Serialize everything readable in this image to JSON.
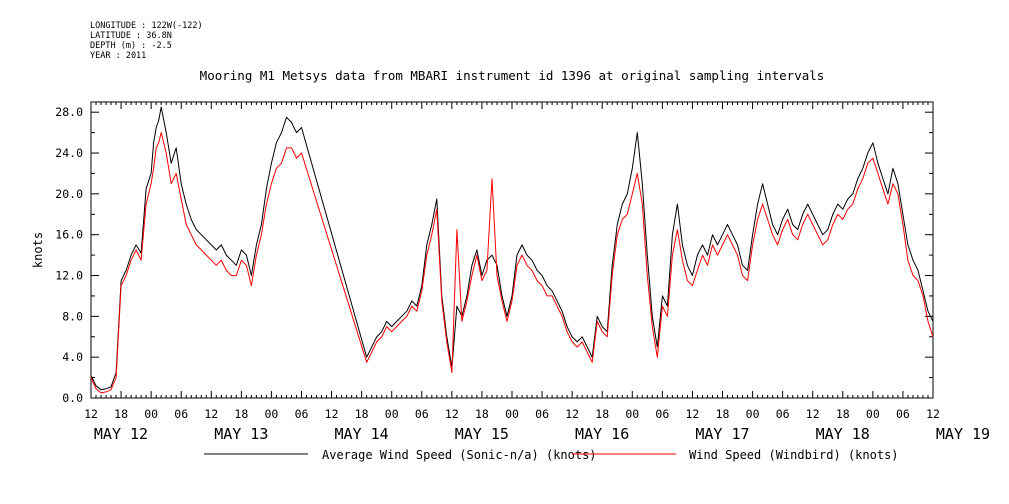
{
  "metadata": [
    "LONGITUDE : 122W(-122)",
    "LATITUDE : 36.8N",
    "DEPTH (m) : -2.5",
    "YEAR : 2011"
  ],
  "colors": {
    "series_sonic": "#000000",
    "series_windbird": "#ff0000"
  },
  "chart_data": {
    "type": "line",
    "title": "Mooring M1 Metsys data from MBARI instrument id 1396 at original sampling intervals",
    "xlabel": "",
    "ylabel": "knots",
    "ylim": [
      0,
      29
    ],
    "xlim_hours": [
      -12,
      156
    ],
    "yticks": [
      "0.0",
      "4.0",
      "8.0",
      "12.0",
      "16.0",
      "20.0",
      "24.0",
      "28.0"
    ],
    "hour_tick_labels": [
      "12",
      "18",
      "00",
      "06",
      "12",
      "18",
      "00",
      "06",
      "12",
      "18",
      "00",
      "06",
      "12",
      "18",
      "00",
      "06",
      "12",
      "18",
      "00",
      "06",
      "12",
      "18",
      "00",
      "06",
      "12",
      "18",
      "00",
      "06",
      "12"
    ],
    "day_labels": [
      "MAY 12",
      "MAY 13",
      "MAY 14",
      "MAY 15",
      "MAY 16",
      "MAY 17",
      "MAY 18",
      "MAY 19"
    ],
    "grid": false,
    "legend_position": "bottom",
    "x_unit_note": "hours relative to 2011-05-12 00:00",
    "series": [
      {
        "name": "Average Wind Speed (Sonic-n/a) (knots)",
        "color": "#000000",
        "points": [
          [
            -12,
            2.2
          ],
          [
            -11,
            1.2
          ],
          [
            -10,
            0.8
          ],
          [
            -9,
            0.9
          ],
          [
            -8,
            1.1
          ],
          [
            -7,
            2.5
          ],
          [
            -6,
            11.5
          ],
          [
            -5,
            12.5
          ],
          [
            -4,
            14.0
          ],
          [
            -3,
            15.0
          ],
          [
            -2,
            14.2
          ],
          [
            -1,
            20.5
          ],
          [
            0,
            22.0
          ],
          [
            0.5,
            25.0
          ],
          [
            1,
            26.5
          ],
          [
            1.5,
            27.2
          ],
          [
            2,
            28.5
          ],
          [
            3,
            26.0
          ],
          [
            4,
            23.0
          ],
          [
            5,
            24.5
          ],
          [
            6,
            21.0
          ],
          [
            7,
            19.0
          ],
          [
            8,
            17.5
          ],
          [
            9,
            16.5
          ],
          [
            10,
            16.0
          ],
          [
            11,
            15.5
          ],
          [
            12,
            15.0
          ],
          [
            13,
            14.5
          ],
          [
            14,
            15.0
          ],
          [
            15,
            14.0
          ],
          [
            16,
            13.5
          ],
          [
            17,
            13.0
          ],
          [
            18,
            14.5
          ],
          [
            19,
            14.0
          ],
          [
            20,
            12.0
          ],
          [
            21,
            15.0
          ],
          [
            22,
            17.0
          ],
          [
            23,
            20.5
          ],
          [
            24,
            23.0
          ],
          [
            25,
            25.0
          ],
          [
            26,
            26.0
          ],
          [
            27,
            27.5
          ],
          [
            28,
            27.0
          ],
          [
            29,
            26.0
          ],
          [
            30,
            26.5
          ],
          [
            43,
            4.0
          ],
          [
            44,
            5.0
          ],
          [
            45,
            6.0
          ],
          [
            46,
            6.5
          ],
          [
            47,
            7.5
          ],
          [
            48,
            7.0
          ],
          [
            49,
            7.5
          ],
          [
            50,
            8.0
          ],
          [
            51,
            8.5
          ],
          [
            52,
            9.5
          ],
          [
            53,
            9.0
          ],
          [
            54,
            11.0
          ],
          [
            55,
            15.0
          ],
          [
            56,
            17.0
          ],
          [
            57,
            19.5
          ],
          [
            58,
            10.0
          ],
          [
            59,
            6.0
          ],
          [
            60,
            3.0
          ],
          [
            61,
            9.0
          ],
          [
            62,
            8.0
          ],
          [
            63,
            10.0
          ],
          [
            64,
            13.0
          ],
          [
            65,
            14.5
          ],
          [
            66,
            12.0
          ],
          [
            67,
            13.5
          ],
          [
            68,
            14.0
          ],
          [
            69,
            13.0
          ],
          [
            70,
            10.0
          ],
          [
            71,
            8.0
          ],
          [
            72,
            10.0
          ],
          [
            73,
            14.0
          ],
          [
            74,
            15.0
          ],
          [
            75,
            14.0
          ],
          [
            76,
            13.5
          ],
          [
            77,
            12.5
          ],
          [
            78,
            12.0
          ],
          [
            79,
            11.0
          ],
          [
            80,
            10.5
          ],
          [
            81,
            9.5
          ],
          [
            82,
            8.5
          ],
          [
            83,
            7.0
          ],
          [
            84,
            6.0
          ],
          [
            85,
            5.5
          ],
          [
            86,
            6.0
          ],
          [
            87,
            5.0
          ],
          [
            88,
            4.0
          ],
          [
            89,
            8.0
          ],
          [
            90,
            7.0
          ],
          [
            91,
            6.5
          ],
          [
            92,
            13.0
          ],
          [
            93,
            17.0
          ],
          [
            94,
            19.0
          ],
          [
            95,
            20.0
          ],
          [
            96,
            22.5
          ],
          [
            97,
            26.0
          ],
          [
            98,
            21.0
          ],
          [
            99,
            14.0
          ],
          [
            100,
            8.0
          ],
          [
            101,
            5.0
          ],
          [
            102,
            10.0
          ],
          [
            103,
            9.0
          ],
          [
            104,
            16.0
          ],
          [
            105,
            19.0
          ],
          [
            106,
            15.0
          ],
          [
            107,
            13.0
          ],
          [
            108,
            12.0
          ],
          [
            109,
            14.0
          ],
          [
            110,
            15.0
          ],
          [
            111,
            14.0
          ],
          [
            112,
            16.0
          ],
          [
            113,
            15.0
          ],
          [
            114,
            16.0
          ],
          [
            115,
            17.0
          ],
          [
            116,
            16.0
          ],
          [
            117,
            15.0
          ],
          [
            118,
            13.0
          ],
          [
            119,
            12.5
          ],
          [
            120,
            16.0
          ],
          [
            121,
            19.0
          ],
          [
            122,
            21.0
          ],
          [
            123,
            19.0
          ],
          [
            124,
            17.0
          ],
          [
            125,
            16.0
          ],
          [
            126,
            17.5
          ],
          [
            127,
            18.5
          ],
          [
            128,
            17.0
          ],
          [
            129,
            16.5
          ],
          [
            130,
            18.0
          ],
          [
            131,
            19.0
          ],
          [
            132,
            18.0
          ],
          [
            133,
            17.0
          ],
          [
            134,
            16.0
          ],
          [
            135,
            16.5
          ],
          [
            136,
            18.0
          ],
          [
            137,
            19.0
          ],
          [
            138,
            18.5
          ],
          [
            139,
            19.5
          ],
          [
            140,
            20.0
          ],
          [
            141,
            21.5
          ],
          [
            142,
            22.5
          ],
          [
            143,
            24.0
          ],
          [
            144,
            25.0
          ],
          [
            145,
            23.0
          ],
          [
            146,
            21.5
          ],
          [
            147,
            20.0
          ],
          [
            148,
            22.5
          ],
          [
            149,
            21.0
          ],
          [
            150,
            18.0
          ],
          [
            151,
            15.0
          ],
          [
            152,
            13.5
          ],
          [
            153,
            12.5
          ],
          [
            154,
            10.5
          ],
          [
            155,
            8.5
          ],
          [
            156,
            7.5
          ]
        ]
      },
      {
        "name": "Wind Speed (Windbird) (knots)",
        "color": "#ff0000",
        "points": [
          [
            -12,
            2.0
          ],
          [
            -11,
            0.9
          ],
          [
            -10,
            0.5
          ],
          [
            -9,
            0.6
          ],
          [
            -8,
            0.8
          ],
          [
            -7,
            2.0
          ],
          [
            -6,
            11.0
          ],
          [
            -5,
            12.0
          ],
          [
            -4,
            13.5
          ],
          [
            -3,
            14.5
          ],
          [
            -2,
            13.5
          ],
          [
            -1,
            19.0
          ],
          [
            0,
            21.0
          ],
          [
            0.5,
            22.5
          ],
          [
            1,
            24.5
          ],
          [
            1.5,
            25.0
          ],
          [
            2,
            26.0
          ],
          [
            3,
            24.0
          ],
          [
            4,
            21.0
          ],
          [
            5,
            22.0
          ],
          [
            6,
            19.5
          ],
          [
            7,
            17.0
          ],
          [
            8,
            16.0
          ],
          [
            9,
            15.0
          ],
          [
            10,
            14.5
          ],
          [
            11,
            14.0
          ],
          [
            12,
            13.5
          ],
          [
            13,
            13.0
          ],
          [
            14,
            13.5
          ],
          [
            15,
            12.5
          ],
          [
            16,
            12.0
          ],
          [
            17,
            12.0
          ],
          [
            18,
            13.5
          ],
          [
            19,
            13.0
          ],
          [
            20,
            11.0
          ],
          [
            21,
            14.0
          ],
          [
            22,
            16.0
          ],
          [
            23,
            19.0
          ],
          [
            24,
            21.0
          ],
          [
            25,
            22.5
          ],
          [
            26,
            23.0
          ],
          [
            27,
            24.5
          ],
          [
            28,
            24.5
          ],
          [
            29,
            23.5
          ],
          [
            30,
            24.0
          ],
          [
            43,
            3.5
          ],
          [
            44,
            4.5
          ],
          [
            45,
            5.5
          ],
          [
            46,
            6.0
          ],
          [
            47,
            7.0
          ],
          [
            48,
            6.5
          ],
          [
            49,
            7.0
          ],
          [
            50,
            7.5
          ],
          [
            51,
            8.0
          ],
          [
            52,
            9.0
          ],
          [
            53,
            8.5
          ],
          [
            54,
            10.5
          ],
          [
            55,
            14.0
          ],
          [
            56,
            16.0
          ],
          [
            57,
            18.5
          ],
          [
            58,
            9.5
          ],
          [
            59,
            5.5
          ],
          [
            60,
            2.5
          ],
          [
            61,
            16.5
          ],
          [
            62,
            7.5
          ],
          [
            63,
            9.5
          ],
          [
            64,
            12.0
          ],
          [
            65,
            14.0
          ],
          [
            66,
            11.5
          ],
          [
            67,
            12.5
          ],
          [
            68,
            21.5
          ],
          [
            69,
            12.0
          ],
          [
            70,
            9.5
          ],
          [
            71,
            7.5
          ],
          [
            72,
            9.5
          ],
          [
            73,
            13.0
          ],
          [
            74,
            14.0
          ],
          [
            75,
            13.0
          ],
          [
            76,
            12.5
          ],
          [
            77,
            11.5
          ],
          [
            78,
            11.0
          ],
          [
            79,
            10.0
          ],
          [
            80,
            10.0
          ],
          [
            81,
            9.0
          ],
          [
            82,
            8.0
          ],
          [
            83,
            6.5
          ],
          [
            84,
            5.5
          ],
          [
            85,
            5.0
          ],
          [
            86,
            5.5
          ],
          [
            87,
            4.5
          ],
          [
            88,
            3.5
          ],
          [
            89,
            7.5
          ],
          [
            90,
            6.5
          ],
          [
            91,
            6.0
          ],
          [
            92,
            12.0
          ],
          [
            93,
            16.0
          ],
          [
            94,
            17.5
          ],
          [
            95,
            18.0
          ],
          [
            96,
            20.0
          ],
          [
            97,
            22.0
          ],
          [
            98,
            19.0
          ],
          [
            99,
            12.0
          ],
          [
            100,
            7.0
          ],
          [
            101,
            4.0
          ],
          [
            102,
            9.0
          ],
          [
            103,
            8.0
          ],
          [
            104,
            14.0
          ],
          [
            105,
            16.5
          ],
          [
            106,
            13.5
          ],
          [
            107,
            11.5
          ],
          [
            108,
            11.0
          ],
          [
            109,
            12.5
          ],
          [
            110,
            14.0
          ],
          [
            111,
            13.0
          ],
          [
            112,
            15.0
          ],
          [
            113,
            14.0
          ],
          [
            114,
            15.0
          ],
          [
            115,
            16.0
          ],
          [
            116,
            15.0
          ],
          [
            117,
            14.0
          ],
          [
            118,
            12.0
          ],
          [
            119,
            11.5
          ],
          [
            120,
            15.0
          ],
          [
            121,
            17.5
          ],
          [
            122,
            19.0
          ],
          [
            123,
            17.5
          ],
          [
            124,
            16.0
          ],
          [
            125,
            15.0
          ],
          [
            126,
            16.5
          ],
          [
            127,
            17.5
          ],
          [
            128,
            16.0
          ],
          [
            129,
            15.5
          ],
          [
            130,
            17.0
          ],
          [
            131,
            18.0
          ],
          [
            132,
            17.0
          ],
          [
            133,
            16.0
          ],
          [
            134,
            15.0
          ],
          [
            135,
            15.5
          ],
          [
            136,
            17.0
          ],
          [
            137,
            18.0
          ],
          [
            138,
            17.5
          ],
          [
            139,
            18.5
          ],
          [
            140,
            19.0
          ],
          [
            141,
            20.5
          ],
          [
            142,
            21.5
          ],
          [
            143,
            23.0
          ],
          [
            144,
            23.5
          ],
          [
            145,
            22.0
          ],
          [
            146,
            20.5
          ],
          [
            147,
            19.0
          ],
          [
            148,
            21.0
          ],
          [
            149,
            20.0
          ],
          [
            150,
            17.0
          ],
          [
            151,
            13.5
          ],
          [
            152,
            12.0
          ],
          [
            153,
            11.5
          ],
          [
            154,
            10.0
          ],
          [
            155,
            7.5
          ],
          [
            156,
            6.0
          ]
        ]
      }
    ]
  }
}
